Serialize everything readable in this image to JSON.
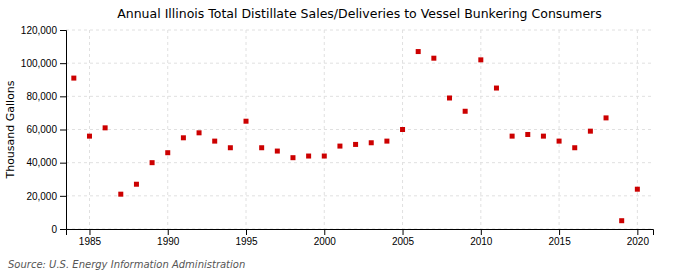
{
  "chart_data": {
    "type": "scatter",
    "title": "Annual Illinois Total Distillate Sales/Deliveries to Vessel Bunkering Consumers",
    "ylabel": "Thousand Gallons",
    "source": "Source: U.S. Energy Information Administration",
    "x": [
      1984,
      1985,
      1986,
      1987,
      1988,
      1989,
      1990,
      1991,
      1992,
      1993,
      1994,
      1995,
      1996,
      1997,
      1998,
      1999,
      2000,
      2001,
      2002,
      2003,
      2004,
      2005,
      2006,
      2007,
      2008,
      2009,
      2010,
      2011,
      2012,
      2013,
      2014,
      2015,
      2016,
      2017,
      2018,
      2019,
      2020
    ],
    "values": [
      91000,
      56000,
      61000,
      21000,
      27000,
      40000,
      46000,
      55000,
      58000,
      53000,
      49000,
      65000,
      49000,
      47000,
      43000,
      44000,
      44000,
      50000,
      51000,
      52000,
      53000,
      60000,
      107000,
      103000,
      79000,
      71000,
      102000,
      85000,
      56000,
      57000,
      56000,
      53000,
      49000,
      59000,
      67000,
      5000,
      24000
    ],
    "color": "#cc0000",
    "marker": "square",
    "xlim": [
      1983.5,
      2021
    ],
    "ylim": [
      0,
      120000
    ],
    "xticks": [
      1985,
      1990,
      1995,
      2000,
      2005,
      2010,
      2015,
      2020
    ],
    "yticks": [
      0,
      {
        "value": 20000,
        "label": "20,000"
      },
      {
        "value": 40000,
        "label": "40,000"
      },
      {
        "value": 60000,
        "label": "60,000"
      },
      {
        "value": 80000,
        "label": "80,000"
      },
      {
        "value": 100000,
        "label": "100,000"
      },
      {
        "value": 120000,
        "label": "120,000"
      }
    ],
    "grid": true
  }
}
